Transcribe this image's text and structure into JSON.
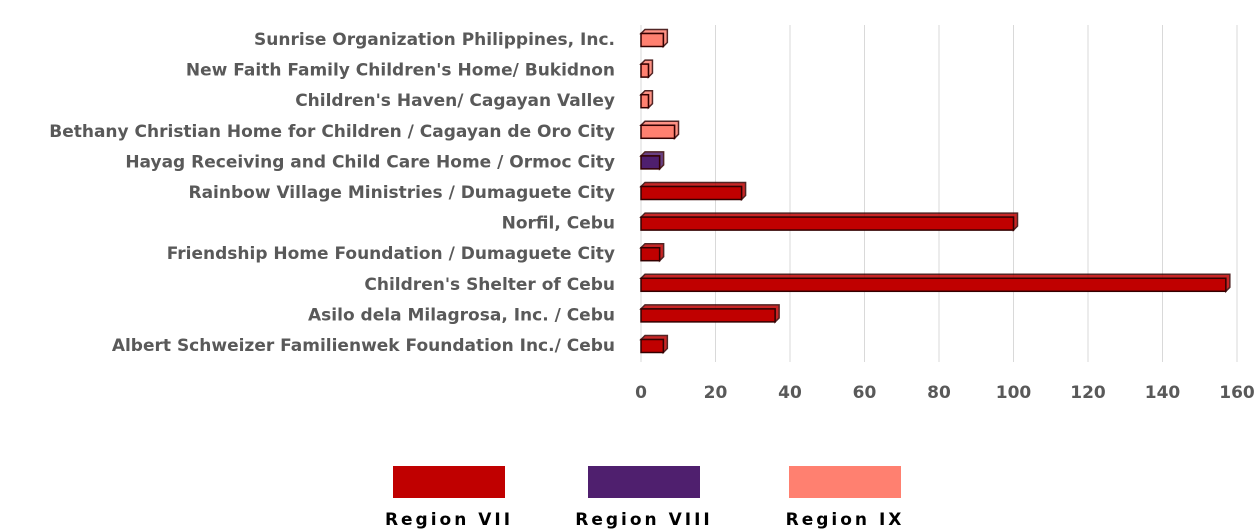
{
  "chart_data": {
    "type": "bar",
    "orientation": "horizontal",
    "categories": [
      "Sunrise Organization Philippines, Inc.",
      "New Faith Family Children's Home/ Bukidnon",
      "Children's Haven/ Cagayan Valley",
      "Bethany Christian Home for Children / Cagayan de Oro City",
      "Hayag Receiving and Child Care Home / Ormoc City",
      "Rainbow Village Ministries / Dumaguete City",
      "Norfil, Cebu",
      "Friendship Home Foundation / Dumaguete City",
      "Children's Shelter of Cebu",
      "Asilo dela Milagrosa, Inc. / Cebu",
      "Albert Schweizer Familienwek Foundation  Inc./ Cebu"
    ],
    "series": [
      {
        "name": "Region VII",
        "color": "#c00000",
        "values": [
          null,
          null,
          null,
          null,
          null,
          27,
          100,
          5,
          157,
          36,
          6
        ]
      },
      {
        "name": "Region VIII",
        "color": "#4f1f6e",
        "values": [
          null,
          null,
          null,
          null,
          5,
          null,
          null,
          null,
          null,
          null,
          null
        ]
      },
      {
        "name": "Region IX",
        "color": "#ff8070",
        "values": [
          6,
          2,
          2,
          9,
          null,
          null,
          null,
          null,
          null,
          null,
          null
        ]
      }
    ],
    "xlim": [
      0,
      160
    ],
    "xticks": [
      0,
      20,
      40,
      60,
      80,
      100,
      120,
      140,
      160
    ],
    "grid": true,
    "legend": "bottom"
  }
}
